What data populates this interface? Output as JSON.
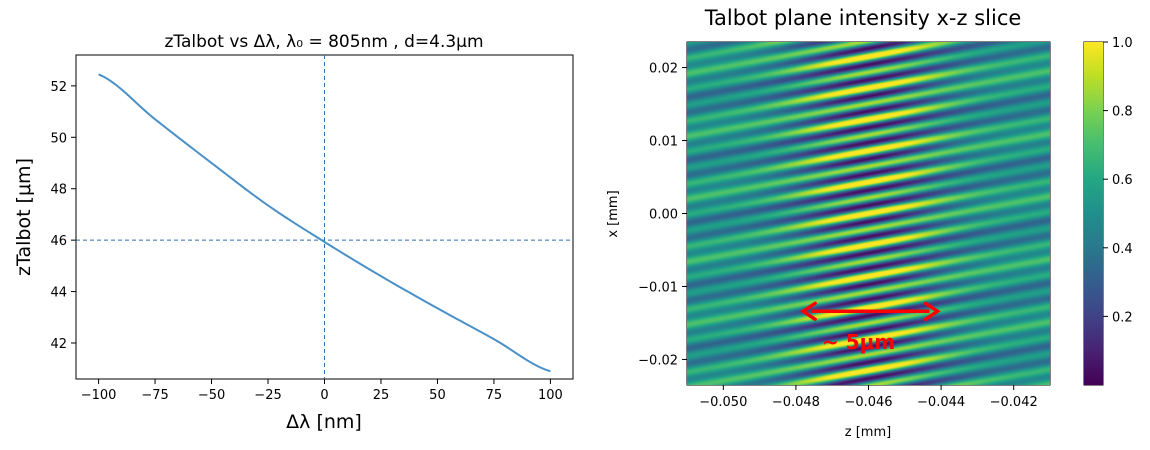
{
  "chart_data": [
    {
      "type": "line",
      "title": "zTalbot vs Δλ, λ₀ = 805nm , d=4.3μm",
      "xlabel": "Δλ [nm]",
      "ylabel": "zTalbot [μm]",
      "xlim": [
        -110,
        110
      ],
      "ylim": [
        40.6,
        53.2
      ],
      "xticks": [
        -100,
        -75,
        -50,
        -25,
        0,
        25,
        50,
        75,
        100
      ],
      "xtick_labels": [
        "−100",
        "−75",
        "−50",
        "−25",
        "0",
        "25",
        "50",
        "75",
        "100"
      ],
      "yticks": [
        42,
        44,
        46,
        48,
        50,
        52
      ],
      "ytick_labels": [
        "42",
        "44",
        "46",
        "48",
        "50",
        "52"
      ],
      "grid": false,
      "reference_lines": [
        {
          "orientation": "vertical",
          "value": 0
        },
        {
          "orientation": "horizontal",
          "value": 46
        }
      ],
      "series": [
        {
          "color": "#4a90c8",
          "x": [
            -100,
            -75,
            -50,
            -25,
            0,
            25,
            50,
            75,
            100
          ],
          "y": [
            52.45,
            50.7,
            49.0,
            47.35,
            45.93,
            44.6,
            43.35,
            42.15,
            40.9
          ]
        }
      ]
    },
    {
      "type": "heatmap",
      "title": "Talbot plane intensity x-z slice",
      "xlabel": "z [mm]",
      "ylabel": "x [mm]",
      "xlim": [
        -0.051,
        -0.041
      ],
      "ylim": [
        -0.0235,
        0.0235
      ],
      "xticks": [
        -0.05,
        -0.048,
        -0.046,
        -0.044,
        -0.042
      ],
      "xtick_labels": [
        "−0.050",
        "−0.048",
        "−0.046",
        "−0.044",
        "−0.042"
      ],
      "yticks": [
        -0.02,
        -0.01,
        0.0,
        0.01,
        0.02
      ],
      "ytick_labels": [
        "−0.02",
        "−0.01",
        "0.00",
        "0.01",
        "0.02"
      ],
      "colormap": "viridis",
      "colorbar": {
        "range": [
          0.0,
          1.0
        ],
        "ticks": [
          0.2,
          0.4,
          0.6,
          0.8,
          1.0
        ],
        "tick_labels": [
          "0.2",
          "0.4",
          "0.6",
          "0.8",
          "1.0"
        ]
      },
      "fringe_period_mm": 0.0043,
      "focus_z_mm": -0.046,
      "annotation": {
        "text": "~ 5μm",
        "color": "#ff0000",
        "arrow_from_z": -0.0478,
        "arrow_to_z": -0.0441,
        "arrow_x": -0.0134
      }
    }
  ]
}
